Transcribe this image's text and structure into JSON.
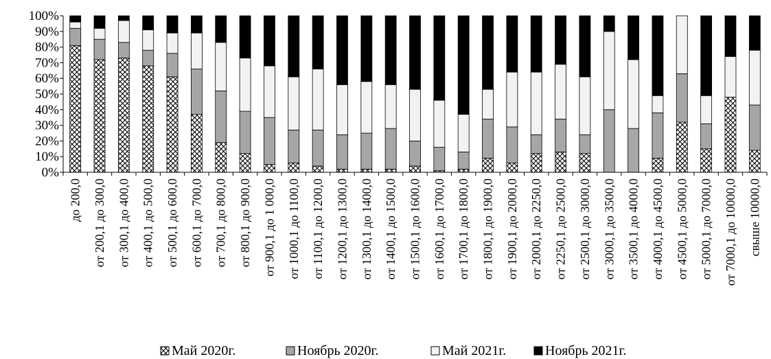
{
  "chart_data": {
    "type": "bar",
    "stacked": true,
    "normalized": true,
    "ylim": [
      0,
      100
    ],
    "yticks": [
      "0%",
      "10%",
      "20%",
      "30%",
      "40%",
      "50%",
      "60%",
      "70%",
      "80%",
      "90%",
      "100%"
    ],
    "legend_position": "bottom",
    "categories": [
      "до 200,0",
      "от 200,1  до 300,0",
      "от 300,1  до 400,0",
      "от 400,1  до 500,0",
      "от 500,1  до 600,0",
      "от 600,1  до 700,0",
      "от 700,1  до 800,0",
      "от 800,1  до 900,0",
      "от 900,1  до 1 000,0",
      "от 1000,1  до 1100,0",
      "от 1100,1  до 1200,0",
      "от 1200,1  до 1300,0",
      "от 1300,1  до 1400,0",
      "от 1400,1  до 1500,0",
      "от 1500,1  до 1600,0",
      "от 1600,1  до 1700,0",
      "от 1700,1  до 1800,0",
      "от 1800,1  до 1900,0",
      "от 1900,1  до 2000,0",
      "от 2000,1  до 2250,0",
      "от 2250,1  до 2500,0",
      "от 2500,1  до 3000,0",
      "от 3000,1  до 3500,0",
      "от 3500,1  до 4000,0",
      "от 4000,1  до 4500,0",
      "от 4500,1  до 5000,0",
      "от 5000,1  до 7000,0",
      "от 7000,1  до 10000,0",
      "свыше 10000,0"
    ],
    "series": [
      {
        "name": "Май 2020г.",
        "pattern": "crosshatch",
        "color": "#ffffff",
        "values": [
          81,
          72,
          73,
          68,
          61,
          37,
          19,
          12,
          5,
          6,
          4,
          2,
          2,
          2,
          4,
          1,
          2,
          9,
          6,
          12,
          13,
          12,
          0,
          0,
          9,
          32,
          15,
          48,
          14
        ]
      },
      {
        "name": "Ноябрь 2020г.",
        "pattern": "solid",
        "color": "#a6a6a6",
        "values": [
          11,
          13,
          10,
          10,
          15,
          29,
          33,
          27,
          30,
          21,
          23,
          22,
          23,
          26,
          16,
          15,
          11,
          25,
          23,
          12,
          21,
          12,
          40,
          28,
          29,
          31,
          16,
          0,
          29
        ]
      },
      {
        "name": "Май 2021г.",
        "pattern": "solid",
        "color": "#f2f2f2",
        "values": [
          4,
          7,
          14,
          13,
          13,
          23,
          31,
          34,
          33,
          34,
          39,
          32,
          33,
          28,
          33,
          30,
          24,
          19,
          35,
          40,
          35,
          37,
          50,
          44,
          11,
          37,
          18,
          26,
          35
        ]
      },
      {
        "name": "Ноябрь 2021г.",
        "pattern": "solid",
        "color": "#000000",
        "values": [
          4,
          8,
          3,
          9,
          11,
          11,
          17,
          27,
          32,
          39,
          34,
          44,
          42,
          44,
          47,
          54,
          63,
          47,
          36,
          36,
          31,
          39,
          10,
          28,
          51,
          0,
          51,
          26,
          22
        ]
      }
    ]
  }
}
